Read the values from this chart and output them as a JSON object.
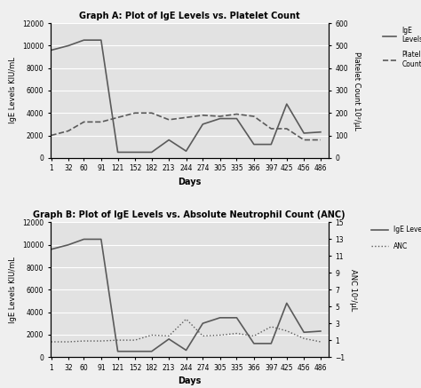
{
  "days": [
    1,
    32,
    60,
    91,
    121,
    152,
    182,
    213,
    244,
    274,
    305,
    335,
    366,
    397,
    425,
    456,
    486
  ],
  "ige_levels": [
    9600,
    10000,
    10500,
    10500,
    500,
    500,
    500,
    1600,
    600,
    3000,
    3500,
    3500,
    1200,
    1200,
    4800,
    2200,
    2300
  ],
  "platelet_count": [
    100,
    120,
    160,
    160,
    180,
    200,
    200,
    170,
    180,
    190,
    185,
    195,
    185,
    130,
    130,
    80,
    80
  ],
  "anc": [
    0.8,
    0.8,
    0.9,
    0.9,
    1.0,
    1.0,
    1.6,
    1.5,
    3.5,
    1.5,
    1.6,
    1.8,
    1.5,
    2.6,
    2.1,
    1.2,
    0.8
  ],
  "title_a": "Graph A: Plot of IgE Levels vs. Platelet Count",
  "title_b": "Graph B: Plot of IgE Levels vs. Absolute Neutrophil Count (ANC)",
  "ylabel_ige": "IgE Levels KIU/mL",
  "ylabel_platelet": "Platelet Count 10²/μL",
  "ylabel_anc": "ANC 10²/μL",
  "xlabel": "Days",
  "legend_a_line1": "IgE\nLevels",
  "legend_a_line2": "Platelet\nCount",
  "legend_b_line1": "IgE Levels",
  "legend_b_line2": "ANC",
  "ige_ylim": [
    0,
    12000
  ],
  "platelet_ylim": [
    0,
    600
  ],
  "anc_ylim": [
    -1,
    15
  ],
  "line_color": "#5a5a5a",
  "bg_color": "#efefef",
  "plot_bg_color": "#e2e2e2",
  "grid_color": "white"
}
